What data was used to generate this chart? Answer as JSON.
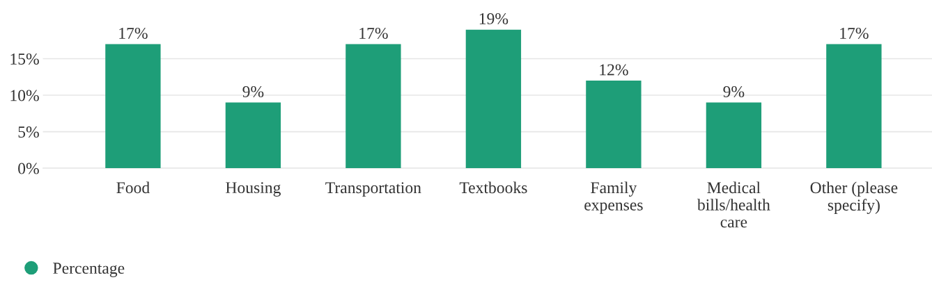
{
  "chart_data": {
    "type": "bar",
    "categories": [
      "Food",
      "Housing",
      "Transportation",
      "Textbooks",
      "Family expenses",
      "Medical bills/health care",
      "Other (please specify)"
    ],
    "series": [
      {
        "name": "Percentage",
        "color": "#1e9e78",
        "values": [
          17,
          9,
          17,
          19,
          12,
          9,
          17
        ],
        "value_labels": [
          "17%",
          "9%",
          "17%",
          "19%",
          "12%",
          "9%",
          "17%"
        ]
      }
    ],
    "ylim": [
      0,
      19
    ],
    "yticks": [
      {
        "value": 0,
        "label": "0%"
      },
      {
        "value": 5,
        "label": "5%"
      },
      {
        "value": 10,
        "label": "10%"
      },
      {
        "value": 15,
        "label": "15%"
      }
    ],
    "grid": "y",
    "legend": "bottom left"
  }
}
